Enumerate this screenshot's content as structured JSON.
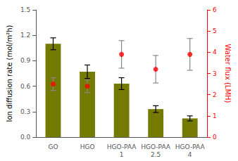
{
  "chart_data": {
    "type": "bar",
    "categories": [
      "GO",
      "HGO",
      "HGO-PAA\n1",
      "HGO-PAA\n2.5",
      "HGO-PAA\n4"
    ],
    "series": [
      {
        "type": "bar",
        "color": "#757a00",
        "values": [
          1.1,
          0.77,
          0.63,
          0.33,
          0.22
        ],
        "errors": [
          0.07,
          0.08,
          0.07,
          0.04,
          0.03
        ]
      },
      {
        "type": "scatter",
        "axis": "y2",
        "color": "#ff0000",
        "marker": "circle",
        "values": [
          2.5,
          2.4,
          3.9,
          3.2,
          3.9
        ],
        "errors": [
          0.3,
          0.3,
          0.65,
          0.65,
          0.75
        ]
      }
    ],
    "ylabel": "Ion diffusion rate (mol/m²h)",
    "y2label": "Water flux (LMH)",
    "ylim": [
      0,
      1.5
    ],
    "yticks": [
      {
        "value": 0.0,
        "label": "0.0"
      },
      0.3,
      0.6,
      0.9,
      1.2,
      1.5
    ],
    "y2lim": [
      0,
      6
    ],
    "y2ticks": [
      0,
      1,
      2,
      3,
      4,
      5,
      6
    ],
    "grid": false
  }
}
